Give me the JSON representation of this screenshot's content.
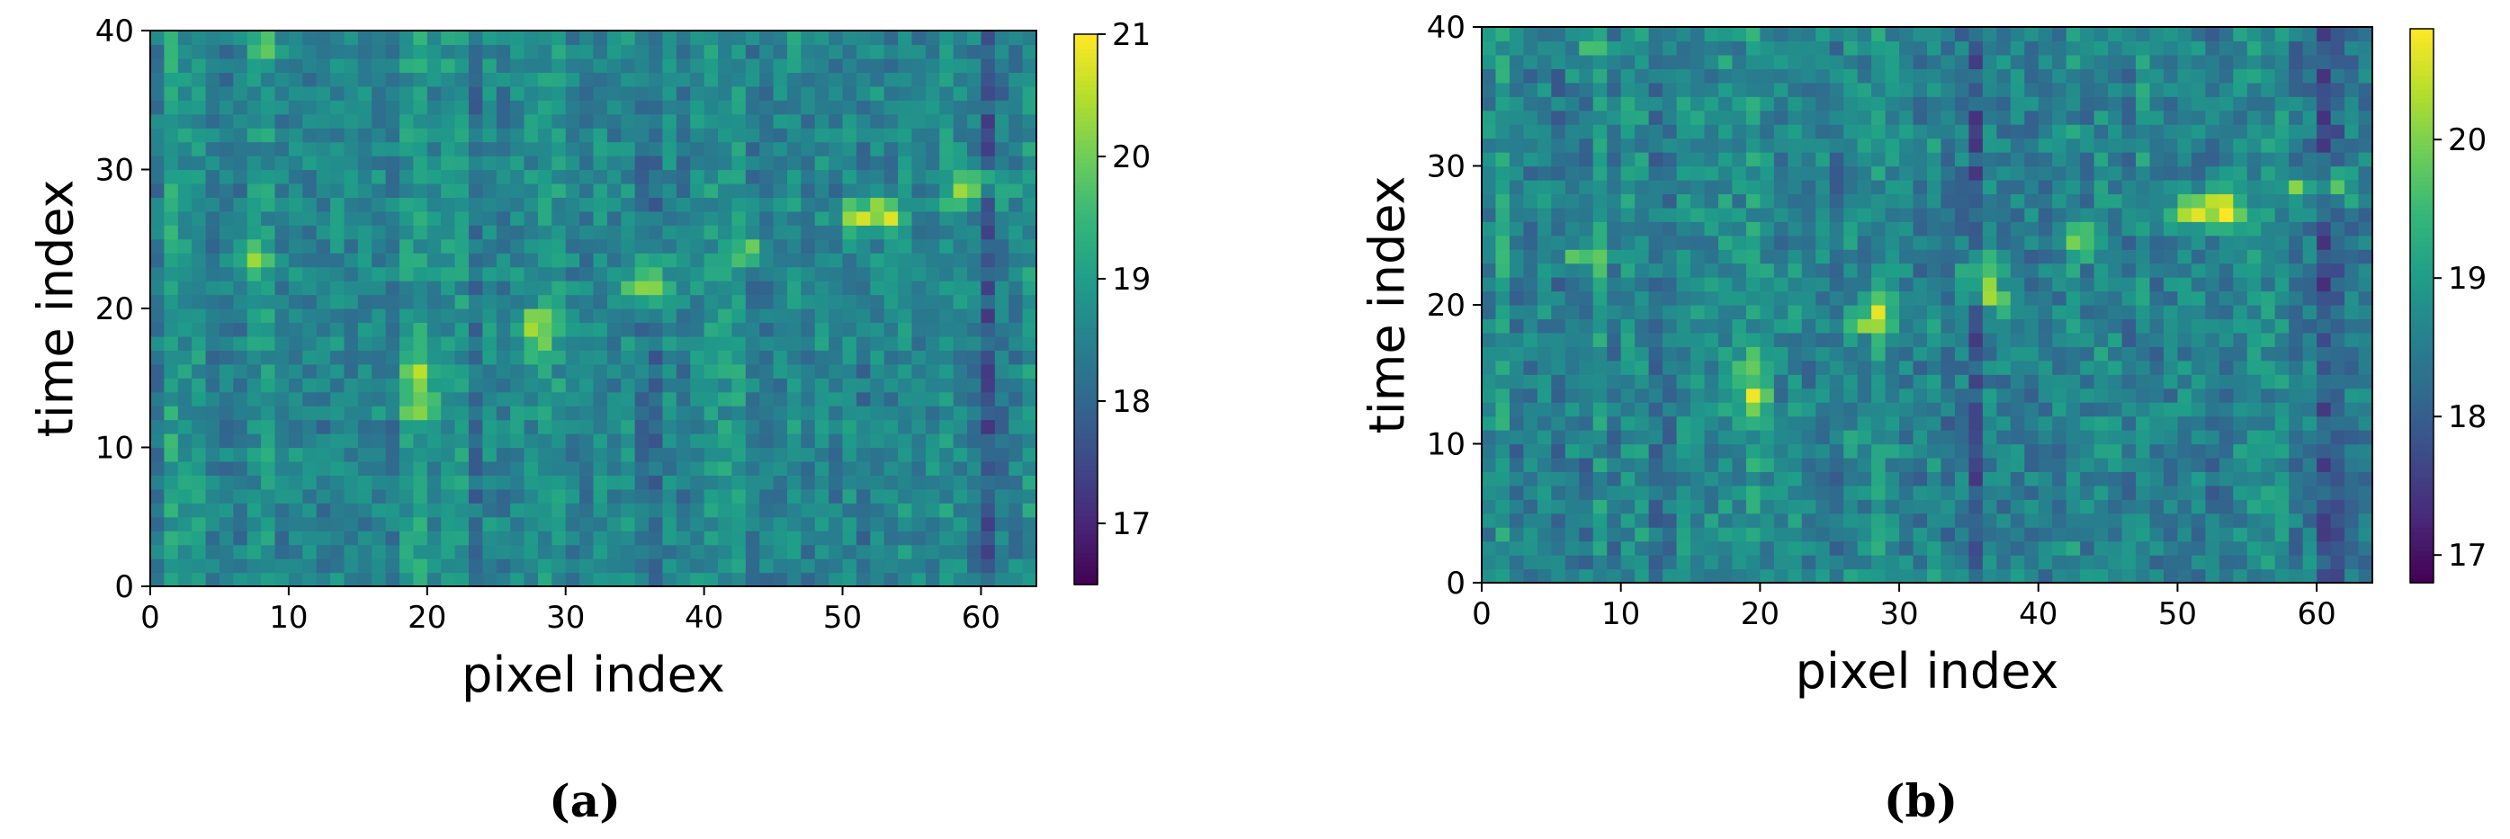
{
  "chart_data": [
    {
      "type": "heatmap",
      "panel_label": "(a)",
      "xlabel": "pixel index",
      "ylabel": "time index",
      "xlim": [
        0,
        64
      ],
      "ylim": [
        0,
        40
      ],
      "x_ticks": [
        "0",
        "10",
        "20",
        "30",
        "40",
        "50",
        "60"
      ],
      "y_ticks": [
        "0",
        "10",
        "20",
        "30",
        "40"
      ],
      "colormap": "viridis",
      "color_range": [
        16.5,
        21.0
      ],
      "colorbar_ticks": [
        "17",
        "18",
        "19",
        "20",
        "21"
      ],
      "grid": false,
      "grid_size": [
        64,
        40
      ],
      "baseline_value": 18.6,
      "noise_amplitude": 0.5,
      "bright_spots": [
        {
          "pixel": 19.5,
          "time": 13.0,
          "value": 20.5
        },
        {
          "pixel": 19.5,
          "time": 15.5,
          "value": 19.9
        },
        {
          "pixel": 27.5,
          "time": 19.0,
          "value": 19.9
        },
        {
          "pixel": 29.0,
          "time": 19.5,
          "value": 19.8
        },
        {
          "pixel": 28.0,
          "time": 17.5,
          "value": 19.6
        },
        {
          "pixel": 35.5,
          "time": 21.5,
          "value": 20.1
        },
        {
          "pixel": 37.0,
          "time": 21.0,
          "value": 20.0
        },
        {
          "pixel": 36.0,
          "time": 23.0,
          "value": 19.9
        },
        {
          "pixel": 43.5,
          "time": 24.5,
          "value": 20.2
        },
        {
          "pixel": 51.0,
          "time": 26.5,
          "value": 20.8
        },
        {
          "pixel": 53.5,
          "time": 26.5,
          "value": 20.8
        },
        {
          "pixel": 52.5,
          "time": 27.5,
          "value": 20.2
        },
        {
          "pixel": 58.5,
          "time": 28.5,
          "value": 20.1
        },
        {
          "pixel": 60.0,
          "time": 29.5,
          "value": 19.8
        },
        {
          "pixel": 61.5,
          "time": 28.5,
          "value": 19.7
        },
        {
          "pixel": 7.5,
          "time": 23.5,
          "value": 20.4
        },
        {
          "pixel": 8.0,
          "time": 38.5,
          "value": 19.9
        }
      ],
      "dark_columns": [
        {
          "pixel": 12.5,
          "offset": -0.5
        },
        {
          "pixel": 23.5,
          "offset": -0.3
        },
        {
          "pixel": 35.5,
          "offset": -0.6
        },
        {
          "pixel": 36.5,
          "offset": -0.5
        },
        {
          "pixel": 51.5,
          "offset": -0.3
        },
        {
          "pixel": 60.5,
          "offset": -0.8
        },
        {
          "pixel": 61.5,
          "offset": -0.4
        }
      ],
      "bright_columns": [
        {
          "pixel": 1.5,
          "offset": 0.4
        },
        {
          "pixel": 8.5,
          "offset": 0.3
        },
        {
          "pixel": 19.5,
          "offset": 0.2
        },
        {
          "pixel": 42.5,
          "offset": 0.2
        }
      ]
    },
    {
      "type": "heatmap",
      "panel_label": "(b)",
      "xlabel": "pixel index",
      "ylabel": "time index",
      "xlim": [
        0,
        64
      ],
      "ylim": [
        0,
        40
      ],
      "x_ticks": [
        "0",
        "10",
        "20",
        "30",
        "40",
        "50",
        "60"
      ],
      "y_ticks": [
        "0",
        "10",
        "20",
        "30",
        "40"
      ],
      "colormap": "viridis",
      "color_range": [
        16.8,
        20.8
      ],
      "colorbar_ticks": [
        "17",
        "18",
        "19",
        "20"
      ],
      "grid": false,
      "grid_size": [
        64,
        40
      ],
      "baseline_value": 18.6,
      "noise_amplitude": 0.5,
      "bright_spots": [
        {
          "pixel": 19.5,
          "time": 13.0,
          "value": 20.4
        },
        {
          "pixel": 19.5,
          "time": 15.5,
          "value": 19.9
        },
        {
          "pixel": 27.5,
          "time": 19.0,
          "value": 19.9
        },
        {
          "pixel": 29.0,
          "time": 19.5,
          "value": 19.8
        },
        {
          "pixel": 35.5,
          "time": 21.5,
          "value": 20.1
        },
        {
          "pixel": 37.0,
          "time": 20.5,
          "value": 20.2
        },
        {
          "pixel": 36.0,
          "time": 23.0,
          "value": 19.9
        },
        {
          "pixel": 43.5,
          "time": 24.5,
          "value": 20.2
        },
        {
          "pixel": 51.0,
          "time": 26.5,
          "value": 20.7
        },
        {
          "pixel": 53.5,
          "time": 26.5,
          "value": 20.7
        },
        {
          "pixel": 52.5,
          "time": 27.5,
          "value": 20.1
        },
        {
          "pixel": 58.5,
          "time": 28.5,
          "value": 20.1
        },
        {
          "pixel": 61.5,
          "time": 28.5,
          "value": 20.2
        },
        {
          "pixel": 7.5,
          "time": 23.5,
          "value": 20.4
        },
        {
          "pixel": 8.0,
          "time": 38.5,
          "value": 19.8
        }
      ],
      "dark_columns": [
        {
          "pixel": 12.5,
          "offset": -0.5
        },
        {
          "pixel": 23.5,
          "offset": -0.3
        },
        {
          "pixel": 33.5,
          "offset": -0.4
        },
        {
          "pixel": 35.5,
          "offset": -0.5
        },
        {
          "pixel": 51.5,
          "offset": -0.3
        },
        {
          "pixel": 60.5,
          "offset": -0.8
        },
        {
          "pixel": 61.5,
          "offset": -0.4
        }
      ],
      "bright_columns": [
        {
          "pixel": 1.5,
          "offset": 0.4
        },
        {
          "pixel": 8.5,
          "offset": 0.3
        },
        {
          "pixel": 19.5,
          "offset": 0.2
        },
        {
          "pixel": 42.5,
          "offset": 0.2
        }
      ]
    }
  ]
}
